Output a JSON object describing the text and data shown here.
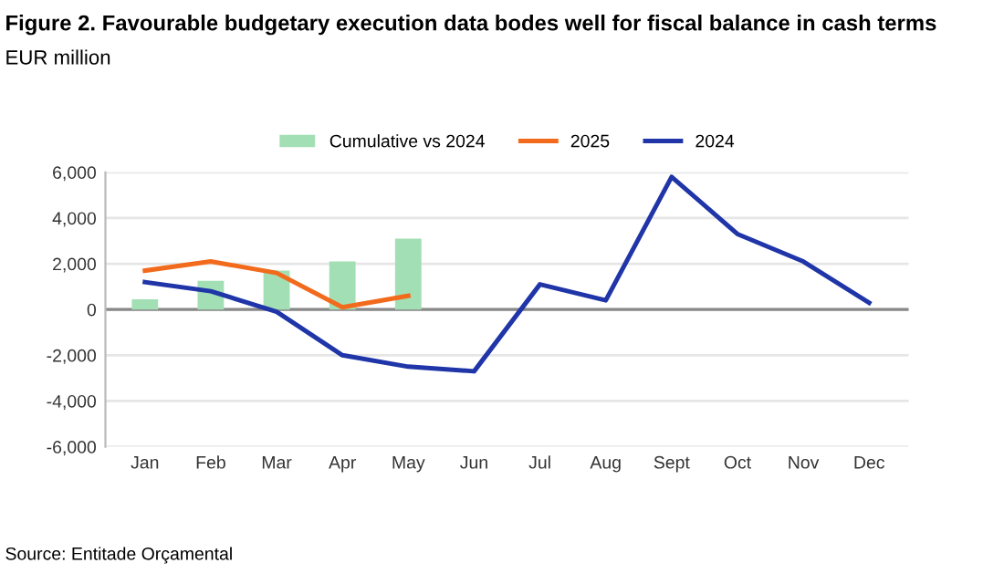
{
  "chart_data": {
    "type": "bar",
    "title": "Figure 2. Favourable budgetary execution data bodes well for fiscal balance in cash terms",
    "subtitle": "EUR million",
    "categories": [
      "Jan",
      "Feb",
      "Mar",
      "Apr",
      "May",
      "Jun",
      "Jul",
      "Aug",
      "Sept",
      "Oct",
      "Nov",
      "Dec"
    ],
    "series": [
      {
        "name": "Cumulative vs 2024",
        "color": "#a3dfb4",
        "values": [
          450,
          1250,
          1700,
          2100,
          3100,
          null,
          null,
          null,
          null,
          null,
          null,
          null
        ]
      },
      {
        "name": "2025",
        "type": "line",
        "color": "#f26a1b",
        "values": [
          1700,
          2100,
          1600,
          100,
          600,
          null,
          null,
          null,
          null,
          null,
          null,
          null
        ]
      },
      {
        "name": "2024",
        "type": "line",
        "color": "#1f35a8",
        "values": [
          1200,
          800,
          -100,
          -2000,
          -2500,
          -2700,
          1100,
          400,
          5800,
          3300,
          2100,
          300
        ]
      }
    ],
    "ylim": [
      -6000,
      6000
    ],
    "yticks": [
      {
        "value": -6000,
        "label": "-6,000"
      },
      {
        "value": -4000,
        "label": "-4,000"
      },
      {
        "value": -2000,
        "label": "-2,000"
      },
      0,
      {
        "value": 2000,
        "label": "2,000"
      },
      {
        "value": 4000,
        "label": "4,000"
      },
      {
        "value": 6000,
        "label": "6,000"
      }
    ],
    "grid": "y",
    "legend": "top",
    "marker": "none",
    "line_style": "solid",
    "annotations": [
      "Source: Entitade Orçamental"
    ]
  }
}
